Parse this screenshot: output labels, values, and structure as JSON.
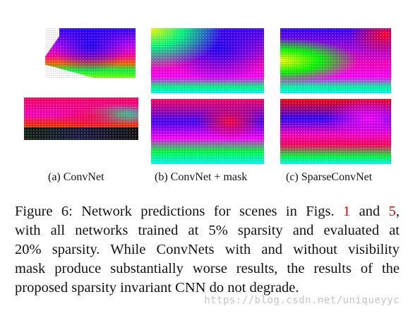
{
  "figure": {
    "subfigures": [
      {
        "id": "a",
        "caption": "(a) ConvNet"
      },
      {
        "id": "b",
        "caption": "(b) ConvNet + mask"
      },
      {
        "id": "c",
        "caption": "(c) SparseConvNet"
      }
    ],
    "caption_lines": [
      {
        "pre": "Figure 6:  Network predictions for scenes in Figs. ",
        "ref1": "1",
        "mid": " and ",
        "ref2": "5",
        "post": ","
      },
      {
        "text": "with all networks trained at 5% sparsity and evaluated at"
      },
      {
        "text": "20% sparsity.  While ConvNets with and without visibility"
      },
      {
        "text": "mask produce substantially worse results, the results of the"
      },
      {
        "text": "proposed sparsity invariant CNN do not degrade."
      }
    ]
  },
  "watermark": "https://blog.csdn.net/uniqueyyc"
}
